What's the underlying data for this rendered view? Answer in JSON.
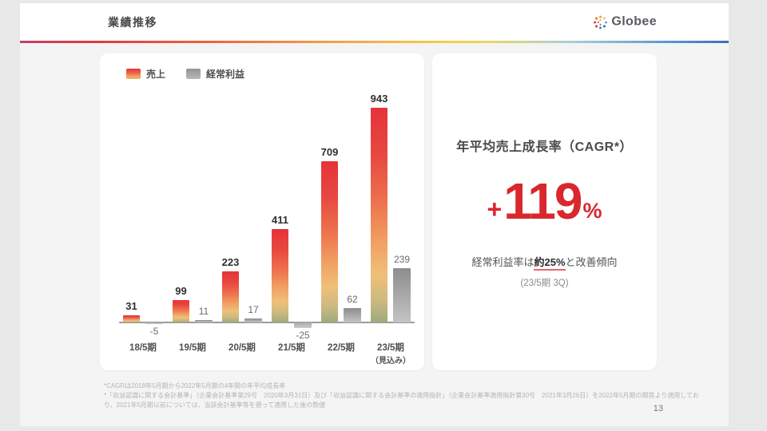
{
  "header": {
    "title": "業績推移",
    "brand": "Globee"
  },
  "chart_data": {
    "type": "bar",
    "title": "業績推移",
    "categories": [
      "18/5期",
      "19/5期",
      "20/5期",
      "21/5期",
      "22/5期",
      "23/5期"
    ],
    "category_notes": [
      "",
      "",
      "",
      "",
      "",
      "（見込み）"
    ],
    "series": [
      {
        "name": "売上",
        "values": [
          31,
          99,
          223,
          411,
          709,
          943
        ]
      },
      {
        "name": "経常利益",
        "values": [
          -5,
          11,
          17,
          -25,
          62,
          239
        ]
      }
    ],
    "value_labels": true,
    "grid": false,
    "legend_position": "top-left",
    "ylim": [
      -50,
      1000
    ]
  },
  "cagr_panel": {
    "heading": "年平均売上成長率（CAGR*）",
    "value_prefix": "+",
    "value": "119",
    "value_suffix": "%",
    "note_prefix": "経常利益率は",
    "note_emphasis": "約25%",
    "note_suffix": "と改善傾向",
    "note_period": "(23/5期 3Q)"
  },
  "footnotes": [
    "*CAGRは2018年5月期から2022年5月期の4年間の年平均成長率",
    "*「収益認識に関する会計基準」（企業会計基準第29号　2020年3月31日）及び「収益認識に関する会計基準の適用指針」（企業会計基準適用指針第30号　2021年3月26日）を2022年5月期の期首より適用してお",
    "り、2021年5月期以前については、当該会計基準等を遡って適用した後の数値"
  ],
  "page_number": "13",
  "palette": {
    "accent_red": "#d9272e",
    "underline_red": "#e0696e",
    "sales_bar_top": "#e5333b",
    "sales_bar_mid": "#f19e62",
    "sales_bar_bottom": "#9dab7e",
    "profit_bar_top": "#8d8d8d",
    "profit_bar_bottom": "#c4c4c4",
    "divider_gradient": [
      "#c2406a",
      "#dd3a3e",
      "#f29a47",
      "#f4c84d",
      "#5f9ed2",
      "#3a72b8"
    ]
  }
}
